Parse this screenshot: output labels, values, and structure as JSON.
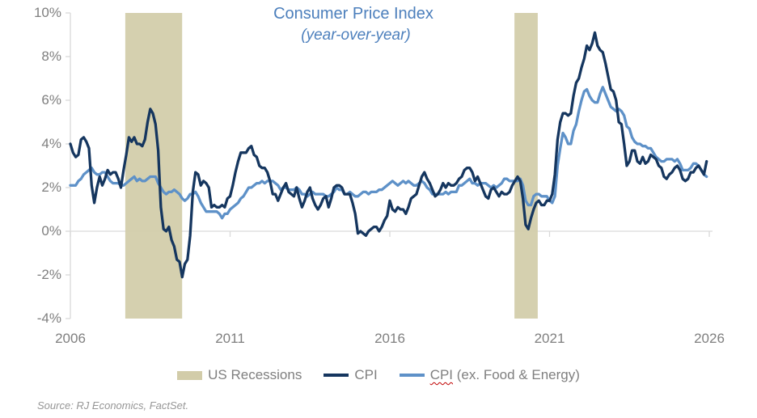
{
  "chart": {
    "title": "Consumer Price Index",
    "subtitle": "(year-over-year)",
    "source": "Source: RJ Economics, FactSet."
  },
  "legend": {
    "items": [
      {
        "type": "box",
        "label": "US Recessions",
        "color": "#D2CCA9"
      },
      {
        "type": "line",
        "label": "CPI",
        "color": "#15365F"
      },
      {
        "type": "line",
        "label": "CPI (ex. Food & Energy)",
        "label_cpi": "CPI",
        "label_rest": " (ex. Food & Energy)",
        "color": "#5E91C8",
        "spellcheck_squiggle_color": "#C00000"
      }
    ]
  },
  "colors": {
    "title_blue": "#4C7FBC",
    "cpi_line": "#15365F",
    "core_cpi_line": "#5E91C8",
    "recession_band": "#D2CCA9",
    "axis_line": "#D9D9D9",
    "tick_text": "#7F7F7F",
    "source_text": "#969696",
    "background": "#FFFFFF"
  },
  "chart_data": {
    "type": "line",
    "title": "Consumer Price Index",
    "subtitle": "(year-over-year)",
    "xlim": [
      2006,
      2026
    ],
    "ylim": [
      -4,
      10
    ],
    "grid": "zero-line-only",
    "legend_position": "bottom",
    "frequency": "monthly",
    "series_start_year": 2006,
    "x_ticks": [
      {
        "label": "2006",
        "year": 2006
      },
      {
        "label": "2011",
        "year": 2011
      },
      {
        "label": "2016",
        "year": 2016
      },
      {
        "label": "2021",
        "year": 2021
      },
      {
        "label": "2026",
        "year": 2026
      }
    ],
    "y_ticks": [
      {
        "label": "10%",
        "value": 10
      },
      {
        "label": "8%",
        "value": 8
      },
      {
        "label": "6%",
        "value": 6
      },
      {
        "label": "4%",
        "value": 4
      },
      {
        "label": "2%",
        "value": 2
      },
      {
        "label": "0%",
        "value": 0
      },
      {
        "label": "-2%",
        "value": -2
      },
      {
        "label": "-4%",
        "value": -4
      }
    ],
    "recessions": {
      "label": "US Recessions",
      "color": "#D2CCA9",
      "bands": [
        {
          "start": 2007.72,
          "end": 2009.5
        },
        {
          "start": 2019.9,
          "end": 2020.63
        }
      ]
    },
    "series": [
      {
        "name": "CPI",
        "color": "#15365F",
        "values": [
          4.0,
          3.6,
          3.4,
          3.5,
          4.2,
          4.3,
          4.1,
          3.8,
          2.1,
          1.3,
          2.0,
          2.5,
          2.1,
          2.4,
          2.8,
          2.6,
          2.7,
          2.7,
          2.4,
          2.0,
          2.8,
          3.5,
          4.3,
          4.1,
          4.3,
          4.0,
          4.0,
          3.9,
          4.2,
          5.0,
          5.6,
          5.4,
          4.9,
          3.7,
          1.1,
          0.1,
          0.0,
          0.2,
          -0.4,
          -0.7,
          -1.3,
          -1.4,
          -2.1,
          -1.5,
          -1.3,
          -0.2,
          1.8,
          2.7,
          2.6,
          2.1,
          2.3,
          2.2,
          2.0,
          1.1,
          1.2,
          1.1,
          1.1,
          1.2,
          1.1,
          1.5,
          1.6,
          2.1,
          2.7,
          3.2,
          3.6,
          3.6,
          3.6,
          3.8,
          3.9,
          3.5,
          3.4,
          3.0,
          2.9,
          2.9,
          2.7,
          2.3,
          1.7,
          1.7,
          1.4,
          1.7,
          2.0,
          2.2,
          1.8,
          1.7,
          1.6,
          2.0,
          1.5,
          1.1,
          1.4,
          1.8,
          2.0,
          1.5,
          1.2,
          1.0,
          1.2,
          1.5,
          1.6,
          1.1,
          1.5,
          2.0,
          2.1,
          2.1,
          2.0,
          1.7,
          1.7,
          1.7,
          1.3,
          0.8,
          -0.1,
          0.0,
          -0.1,
          -0.2,
          0.0,
          0.1,
          0.2,
          0.2,
          0.0,
          0.2,
          0.5,
          0.7,
          1.4,
          1.0,
          0.9,
          1.1,
          1.0,
          1.0,
          0.8,
          1.1,
          1.5,
          1.6,
          1.7,
          2.1,
          2.5,
          2.7,
          2.4,
          2.2,
          1.9,
          1.6,
          1.7,
          1.9,
          2.2,
          2.0,
          2.2,
          2.1,
          2.1,
          2.2,
          2.4,
          2.5,
          2.8,
          2.9,
          2.9,
          2.7,
          2.3,
          2.5,
          2.2,
          1.9,
          1.6,
          1.5,
          1.9,
          2.0,
          1.8,
          1.6,
          1.8,
          1.7,
          1.7,
          1.8,
          2.1,
          2.3,
          2.5,
          2.3,
          1.5,
          0.3,
          0.1,
          0.6,
          1.0,
          1.3,
          1.4,
          1.2,
          1.2,
          1.4,
          1.4,
          1.7,
          2.6,
          4.2,
          5.0,
          5.4,
          5.4,
          5.3,
          5.4,
          6.2,
          6.8,
          7.0,
          7.5,
          7.9,
          8.5,
          8.3,
          8.6,
          9.1,
          8.5,
          8.3,
          8.2,
          7.7,
          7.1,
          6.5,
          6.4,
          6.0,
          5.0,
          4.9,
          4.0,
          3.0,
          3.2,
          3.7,
          3.7,
          3.2,
          3.1,
          3.4,
          3.1,
          3.2,
          3.5,
          3.4,
          3.3,
          3.0,
          2.9,
          2.5,
          2.4,
          2.6,
          2.7,
          2.9,
          3.0,
          2.8,
          2.4,
          2.3,
          2.4,
          2.7,
          2.7,
          2.9,
          3.0,
          2.8,
          2.6,
          3.2
        ]
      },
      {
        "name": "CPI (ex. Food & Energy)",
        "color": "#5E91C8",
        "values": [
          2.1,
          2.1,
          2.1,
          2.3,
          2.4,
          2.6,
          2.7,
          2.8,
          2.9,
          2.7,
          2.6,
          2.6,
          2.7,
          2.7,
          2.5,
          2.3,
          2.2,
          2.2,
          2.2,
          2.1,
          2.1,
          2.2,
          2.3,
          2.4,
          2.5,
          2.3,
          2.4,
          2.3,
          2.3,
          2.4,
          2.5,
          2.5,
          2.5,
          2.2,
          2.0,
          1.8,
          1.7,
          1.8,
          1.8,
          1.9,
          1.8,
          1.7,
          1.5,
          1.4,
          1.5,
          1.7,
          1.7,
          1.8,
          1.6,
          1.3,
          1.1,
          0.9,
          0.9,
          0.9,
          0.9,
          0.9,
          0.8,
          0.6,
          0.8,
          0.8,
          1.0,
          1.1,
          1.2,
          1.3,
          1.5,
          1.6,
          1.8,
          2.0,
          2.0,
          2.1,
          2.2,
          2.2,
          2.3,
          2.2,
          2.3,
          2.3,
          2.3,
          2.2,
          2.1,
          1.9,
          2.0,
          2.0,
          1.9,
          1.9,
          1.9,
          2.0,
          1.9,
          1.7,
          1.7,
          1.6,
          1.7,
          1.8,
          1.7,
          1.7,
          1.7,
          1.7,
          1.6,
          1.6,
          1.7,
          1.8,
          2.0,
          1.9,
          1.9,
          1.7,
          1.7,
          1.8,
          1.7,
          1.6,
          1.6,
          1.7,
          1.8,
          1.8,
          1.7,
          1.8,
          1.8,
          1.8,
          1.9,
          1.9,
          2.0,
          2.1,
          2.2,
          2.3,
          2.2,
          2.1,
          2.2,
          2.3,
          2.2,
          2.3,
          2.2,
          2.1,
          2.1,
          2.2,
          2.3,
          2.2,
          2.0,
          1.9,
          1.7,
          1.7,
          1.7,
          1.7,
          1.7,
          1.8,
          1.7,
          1.8,
          1.8,
          1.8,
          2.1,
          2.1,
          2.2,
          2.3,
          2.4,
          2.2,
          2.2,
          2.1,
          2.2,
          2.2,
          2.2,
          2.1,
          2.0,
          2.1,
          2.0,
          2.1,
          2.2,
          2.4,
          2.4,
          2.3,
          2.3,
          2.3,
          2.3,
          2.4,
          2.1,
          1.4,
          1.2,
          1.2,
          1.6,
          1.7,
          1.7,
          1.6,
          1.6,
          1.6,
          1.4,
          1.3,
          1.6,
          3.0,
          3.8,
          4.5,
          4.3,
          4.0,
          4.0,
          4.6,
          4.9,
          5.5,
          6.0,
          6.4,
          6.5,
          6.2,
          6.0,
          5.9,
          5.9,
          6.3,
          6.6,
          6.3,
          6.0,
          5.7,
          5.6,
          5.5,
          5.6,
          5.5,
          5.3,
          4.8,
          4.7,
          4.3,
          4.1,
          4.0,
          4.0,
          3.9,
          3.9,
          3.8,
          3.8,
          3.6,
          3.4,
          3.3,
          3.2,
          3.2,
          3.3,
          3.3,
          3.3,
          3.2,
          3.3,
          3.1,
          2.8,
          2.8,
          2.8,
          2.9,
          3.1,
          3.1,
          3.0,
          2.8,
          2.6,
          2.5
        ]
      }
    ]
  }
}
